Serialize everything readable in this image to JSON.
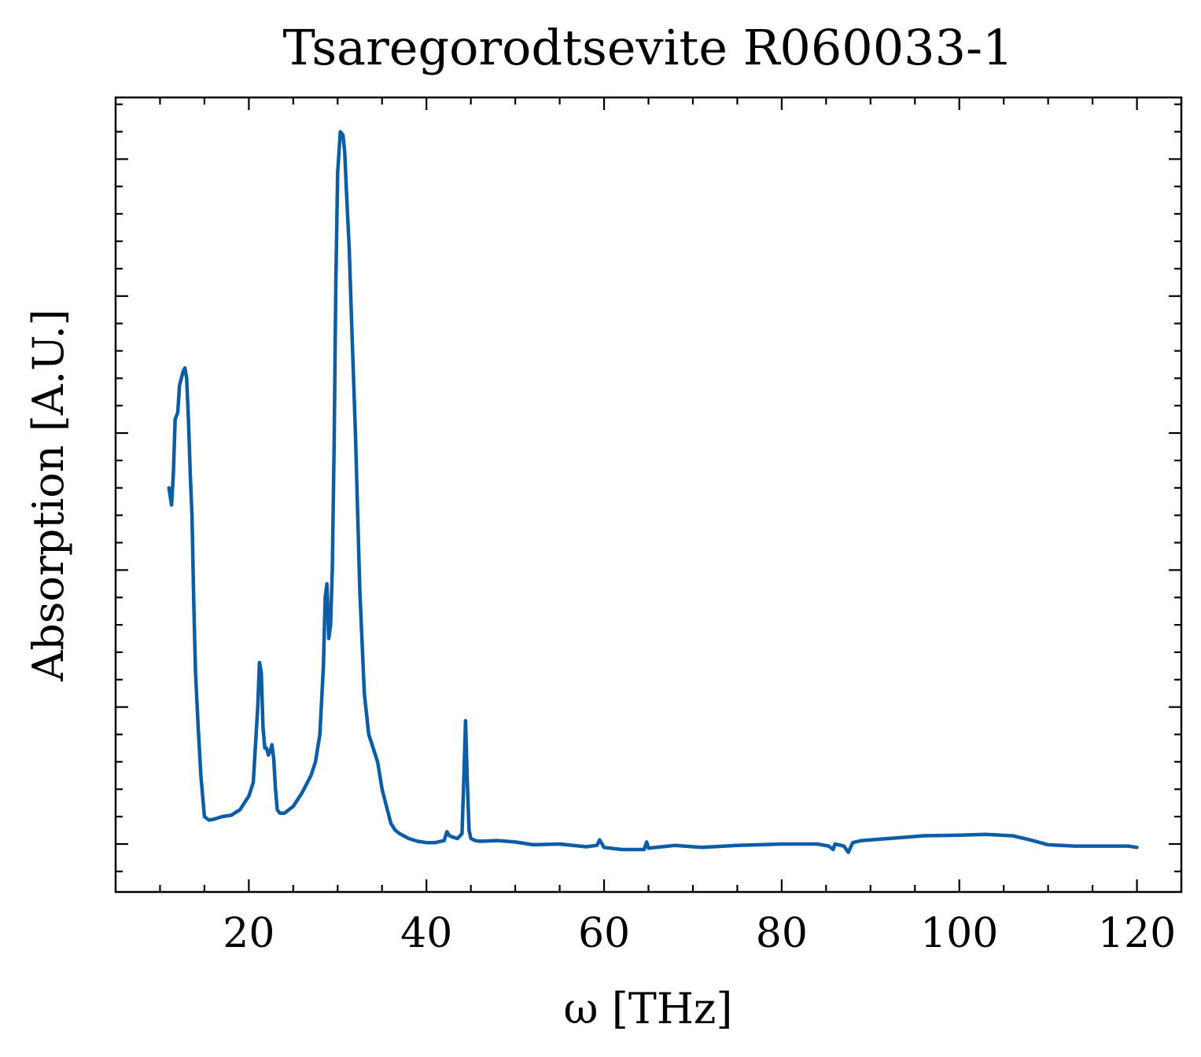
{
  "chart_data": {
    "type": "line",
    "title": "Tsaregorodtsevite R060033-1",
    "xlabel": "ω [THz]",
    "ylabel": "Absorption [A.U.]",
    "xlim": [
      5,
      125
    ],
    "ylim": [
      -0.07,
      1.09
    ],
    "x_ticks": [
      20,
      40,
      60,
      80,
      100,
      120
    ],
    "x_tick_labels": [
      "20",
      "40",
      "60",
      "80",
      "100",
      "120"
    ],
    "y_ticks": [
      0,
      0.2,
      0.4,
      0.6,
      0.8,
      1.0
    ],
    "y_tick_labels_shown": false,
    "grid": false,
    "legend": "none",
    "line_color": "#0C5DA5",
    "series": [
      {
        "x": [
          11.0,
          11.3,
          11.5,
          11.7,
          12.0,
          12.2,
          12.4,
          12.6,
          12.8,
          13.0,
          13.2,
          13.4,
          13.6,
          13.8,
          14.0,
          14.3,
          14.6,
          15.0,
          15.5,
          16.0,
          17.0,
          18.0,
          19.0,
          19.5,
          20.0,
          20.5,
          21.0,
          21.2,
          21.4,
          21.6,
          21.8,
          22.0,
          22.2,
          22.4,
          22.6,
          22.8,
          23.0,
          23.2,
          23.5,
          24.0,
          25.0,
          26.0,
          27.0,
          27.5,
          28.0,
          28.4,
          28.6,
          28.8,
          29.0,
          29.2,
          29.4,
          29.6,
          29.8,
          30.0,
          30.3,
          30.6,
          30.8,
          31.0,
          31.3,
          31.6,
          32.0,
          32.5,
          33.0,
          33.5,
          34.0,
          34.5,
          35.0,
          35.5,
          36.0,
          36.5,
          37.0,
          38.0,
          39.0,
          40.0,
          41.0,
          42.0,
          42.3,
          42.6,
          43.0,
          43.5,
          44.0,
          44.2,
          44.4,
          44.6,
          44.8,
          45.0,
          45.5,
          46.0,
          48.0,
          50.0,
          52.0,
          55.0,
          58.0,
          59.2,
          59.5,
          60.0,
          62.0,
          64.5,
          64.8,
          65.0,
          68.0,
          71.0,
          75.0,
          80.0,
          84.0,
          85.3,
          85.8,
          86.0,
          87.0,
          87.5,
          88.0,
          89.0,
          92.0,
          96.0,
          100.0,
          103.0,
          106.0,
          108.0,
          110.0,
          113.0,
          116.0,
          119.0,
          120.0
        ],
        "values": [
          0.52,
          0.495,
          0.54,
          0.62,
          0.63,
          0.67,
          0.68,
          0.69,
          0.695,
          0.68,
          0.62,
          0.54,
          0.48,
          0.35,
          0.25,
          0.17,
          0.1,
          0.04,
          0.035,
          0.036,
          0.04,
          0.042,
          0.05,
          0.06,
          0.07,
          0.09,
          0.2,
          0.265,
          0.25,
          0.17,
          0.14,
          0.14,
          0.13,
          0.135,
          0.145,
          0.125,
          0.08,
          0.05,
          0.045,
          0.045,
          0.055,
          0.075,
          0.1,
          0.12,
          0.16,
          0.26,
          0.36,
          0.38,
          0.3,
          0.32,
          0.4,
          0.58,
          0.82,
          0.98,
          1.04,
          1.035,
          1.01,
          0.95,
          0.87,
          0.75,
          0.6,
          0.37,
          0.22,
          0.16,
          0.14,
          0.12,
          0.08,
          0.055,
          0.03,
          0.02,
          0.015,
          0.008,
          0.004,
          0.002,
          0.002,
          0.005,
          0.018,
          0.012,
          0.01,
          0.008,
          0.015,
          0.09,
          0.18,
          0.09,
          0.02,
          0.008,
          0.005,
          0.004,
          0.005,
          0.003,
          -0.001,
          0.0,
          -0.004,
          -0.002,
          0.006,
          -0.005,
          -0.008,
          -0.008,
          0.003,
          -0.006,
          -0.002,
          -0.005,
          -0.002,
          0.0,
          0.0,
          -0.003,
          -0.008,
          0.0,
          -0.003,
          -0.012,
          0.002,
          0.005,
          0.008,
          0.012,
          0.013,
          0.014,
          0.012,
          0.006,
          -0.001,
          -0.003,
          -0.003,
          -0.003,
          -0.005
        ]
      }
    ]
  }
}
